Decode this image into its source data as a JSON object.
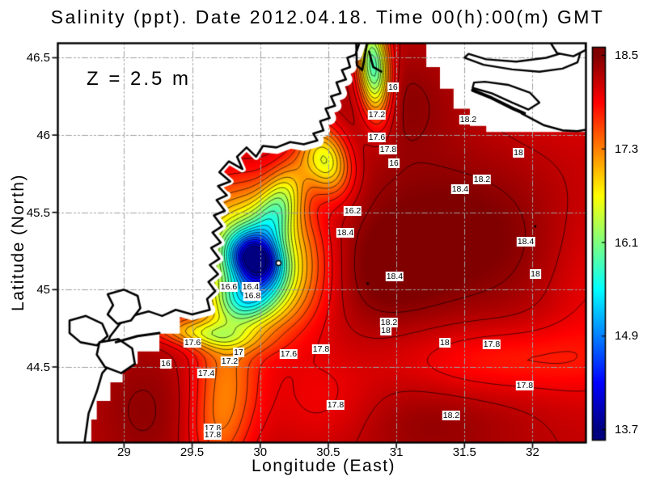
{
  "title": "Salinity (ppt). Date 2012.04.18. Time 00(h):00(m) GMT",
  "annotation": "Z = 2.5 m",
  "axes": {
    "xlabel": "Longitude (East)",
    "ylabel": "Latitude (North)",
    "xticks": [
      "29",
      "29.5",
      "30",
      "30.5",
      "31",
      "31.5",
      "32"
    ],
    "xtick_values": [
      29,
      29.5,
      30,
      30.5,
      31,
      31.5,
      32
    ],
    "yticks": [
      "44.5",
      "45",
      "45.5",
      "46",
      "46.5"
    ],
    "ytick_values": [
      44.5,
      45,
      45.5,
      46,
      46.5
    ],
    "xlim": [
      28.514,
      32.392
    ],
    "ylim": [
      44.011,
      46.594
    ]
  },
  "colorbar": {
    "labels": [
      "18.5",
      "17.3",
      "16.1",
      "14.9",
      "13.7"
    ],
    "values": [
      18.5,
      17.3,
      16.1,
      14.9,
      13.7
    ],
    "min": 13.7,
    "max": 18.5,
    "colormap": "jet"
  },
  "chart_data": {
    "type": "heatmap",
    "variable": "Salinity",
    "units": "ppt",
    "date": "2012.04.18",
    "time": "00(h):00(m) GMT",
    "depth": "Z = 2.5 m",
    "value_range": [
      13.7,
      18.5
    ],
    "contour_interval": 0.2,
    "contour_levels_min": 13.8,
    "contour_levels_max": 18.4,
    "marker": {
      "lon": 30.135,
      "lat": 45.172
    },
    "extremum_dots": [
      [
        30.79,
        45.04
      ],
      [
        32.02,
        45.41
      ]
    ],
    "contour_labels": [
      {
        "t": "16",
        "lon": 30.975,
        "lat": 46.309
      },
      {
        "t": "17.2",
        "lon": 30.857,
        "lat": 46.131
      },
      {
        "t": "17.6",
        "lon": 30.857,
        "lat": 45.985
      },
      {
        "t": "17.8",
        "lon": 30.94,
        "lat": 45.907
      },
      {
        "t": "16",
        "lon": 30.982,
        "lat": 45.818
      },
      {
        "t": "18.2",
        "lon": 31.528,
        "lat": 46.1
      },
      {
        "t": "18",
        "lon": 31.896,
        "lat": 45.886
      },
      {
        "t": "18.2",
        "lon": 31.629,
        "lat": 45.713
      },
      {
        "t": "18.4",
        "lon": 31.468,
        "lat": 45.65
      },
      {
        "t": "16.2",
        "lon": 30.679,
        "lat": 45.509
      },
      {
        "t": "18.4",
        "lon": 30.625,
        "lat": 45.368
      },
      {
        "t": "18.4",
        "lon": 31.95,
        "lat": 45.31
      },
      {
        "t": "18",
        "lon": 32.021,
        "lat": 45.101
      },
      {
        "t": "18.4",
        "lon": 30.987,
        "lat": 45.085
      },
      {
        "t": "16.6",
        "lon": 29.77,
        "lat": 45.018
      },
      {
        "t": "16.4",
        "lon": 29.93,
        "lat": 45.018
      },
      {
        "t": "16.8",
        "lon": 29.942,
        "lat": 44.96
      },
      {
        "t": "18.2",
        "lon": 30.946,
        "lat": 44.787
      },
      {
        "t": "18",
        "lon": 30.922,
        "lat": 44.735
      },
      {
        "t": "17.6",
        "lon": 29.503,
        "lat": 44.657
      },
      {
        "t": "18",
        "lon": 31.355,
        "lat": 44.657
      },
      {
        "t": "17.8",
        "lon": 31.7,
        "lat": 44.646
      },
      {
        "t": "16",
        "lon": 29.307,
        "lat": 44.521
      },
      {
        "t": "17",
        "lon": 29.841,
        "lat": 44.594
      },
      {
        "t": "17.2",
        "lon": 29.776,
        "lat": 44.537
      },
      {
        "t": "17.6",
        "lon": 30.209,
        "lat": 44.584
      },
      {
        "t": "17.8",
        "lon": 30.447,
        "lat": 44.615
      },
      {
        "t": "17.4",
        "lon": 29.604,
        "lat": 44.458
      },
      {
        "t": "17.8",
        "lon": 31.943,
        "lat": 44.38
      },
      {
        "t": "17.8",
        "lon": 30.554,
        "lat": 44.254
      },
      {
        "t": "18.2",
        "lon": 31.403,
        "lat": 44.186
      },
      {
        "t": "17.8",
        "lon": 29.651,
        "lat": 44.103
      },
      {
        "t": "17.8",
        "lon": 29.651,
        "lat": 44.061
      }
    ],
    "field_base": 18.22,
    "field_bumps": [
      [
        29.95,
        45.21,
        0.32,
        0.28,
        -30,
        -2.45
      ],
      [
        29.96,
        45.2,
        0.13,
        0.1,
        -30,
        -2.25
      ],
      [
        30.14,
        45.56,
        0.105,
        0.21,
        -27,
        -1.3
      ],
      [
        30.48,
        45.84,
        0.115,
        0.16,
        25,
        -1.6
      ],
      [
        30.83,
        46.44,
        0.08,
        0.22,
        5,
        -2.45
      ],
      [
        29.9,
        44.93,
        0.17,
        0.12,
        15,
        -1.3
      ],
      [
        29.55,
        44.72,
        0.27,
        0.065,
        -6,
        -1.05
      ],
      [
        29.75,
        44.45,
        0.17,
        0.28,
        8,
        -0.75
      ],
      [
        29.67,
        44.06,
        0.15,
        0.22,
        0,
        -0.55
      ],
      [
        30.45,
        44.28,
        0.28,
        0.22,
        0,
        -0.25
      ],
      [
        31.45,
        45.38,
        0.55,
        0.34,
        -10,
        0.33
      ],
      [
        30.88,
        45.1,
        0.34,
        0.24,
        0,
        0.28
      ],
      [
        32.25,
        46.35,
        0.45,
        0.28,
        0,
        -0.22
      ],
      [
        31.78,
        44.55,
        0.55,
        0.16,
        0,
        -0.42
      ],
      [
        31.25,
        44.12,
        0.4,
        0.18,
        0,
        0.18
      ],
      [
        32.45,
        44.95,
        0.28,
        0.5,
        0,
        -0.26
      ],
      [
        31.05,
        46.22,
        0.28,
        0.22,
        0,
        0.22
      ],
      [
        29.15,
        44.22,
        0.26,
        0.3,
        0,
        0.2
      ]
    ],
    "coastline": [
      [
        30.73,
        46.6
      ],
      [
        30.7,
        46.52
      ],
      [
        30.64,
        46.5
      ],
      [
        30.66,
        46.44
      ],
      [
        30.6,
        46.42
      ],
      [
        30.63,
        46.36
      ],
      [
        30.56,
        46.34
      ],
      [
        30.59,
        46.27
      ],
      [
        30.52,
        46.25
      ],
      [
        30.55,
        46.19
      ],
      [
        30.48,
        46.17
      ],
      [
        30.51,
        46.11
      ],
      [
        30.44,
        46.09
      ],
      [
        30.465,
        46.03
      ],
      [
        30.39,
        46.01
      ],
      [
        30.42,
        45.965
      ],
      [
        30.32,
        45.94
      ],
      [
        30.22,
        45.955
      ],
      [
        30.12,
        45.92
      ],
      [
        30.02,
        45.93
      ],
      [
        29.97,
        45.86
      ],
      [
        29.9,
        45.92
      ],
      [
        29.83,
        45.86
      ],
      [
        29.87,
        45.78
      ],
      [
        29.77,
        45.83
      ],
      [
        29.7,
        45.76
      ],
      [
        29.78,
        45.7
      ],
      [
        29.69,
        45.67
      ],
      [
        29.755,
        45.61
      ],
      [
        29.68,
        45.58
      ],
      [
        29.74,
        45.51
      ],
      [
        29.66,
        45.48
      ],
      [
        29.72,
        45.41
      ],
      [
        29.65,
        45.37
      ],
      [
        29.71,
        45.305
      ],
      [
        29.64,
        45.27
      ],
      [
        29.7,
        45.2
      ],
      [
        29.63,
        45.16
      ],
      [
        29.69,
        45.1
      ],
      [
        29.62,
        45.05
      ],
      [
        29.67,
        44.99
      ],
      [
        29.61,
        44.94
      ],
      [
        29.63,
        44.87
      ],
      [
        29.5,
        44.84
      ],
      [
        29.38,
        44.87
      ],
      [
        29.28,
        44.83
      ],
      [
        29.18,
        44.86
      ],
      [
        29.06,
        44.83
      ],
      [
        28.97,
        44.78
      ],
      [
        28.9,
        44.7
      ],
      [
        28.86,
        44.62
      ],
      [
        28.92,
        44.54
      ],
      [
        28.84,
        44.46
      ],
      [
        28.8,
        44.34
      ],
      [
        28.74,
        44.2
      ],
      [
        28.71,
        44.01
      ]
    ],
    "coast_close": [
      [
        28.45,
        44.01
      ],
      [
        28.45,
        46.6
      ]
    ],
    "nodata_sw": [
      [
        29.47,
        44.88
      ],
      [
        29.41,
        44.85
      ],
      [
        29.41,
        44.715
      ],
      [
        29.26,
        44.715
      ],
      [
        29.26,
        44.6
      ],
      [
        29.1,
        44.6
      ],
      [
        29.1,
        44.52
      ],
      [
        28.99,
        44.52
      ],
      [
        28.99,
        44.4
      ],
      [
        28.9,
        44.4
      ],
      [
        28.9,
        44.28
      ],
      [
        28.8,
        44.28
      ],
      [
        28.8,
        44.16
      ],
      [
        28.76,
        44.16
      ],
      [
        28.76,
        44.01
      ],
      [
        28.45,
        44.01
      ],
      [
        28.45,
        44.86
      ],
      [
        29.0,
        44.9
      ]
    ],
    "nodata_ne": [
      [
        31.22,
        46.6
      ],
      [
        31.22,
        46.44
      ],
      [
        31.32,
        46.44
      ],
      [
        31.32,
        46.3
      ],
      [
        31.42,
        46.3
      ],
      [
        31.42,
        46.17
      ],
      [
        31.54,
        46.17
      ],
      [
        31.54,
        46.06
      ],
      [
        31.66,
        46.06
      ],
      [
        31.66,
        46.02
      ],
      [
        32.392,
        46.02
      ],
      [
        32.392,
        46.6
      ]
    ],
    "lakes": [
      [
        [
          28.88,
          44.97
        ],
        [
          29.0,
          45.0
        ],
        [
          29.1,
          44.96
        ],
        [
          29.12,
          44.88
        ],
        [
          29.05,
          44.8
        ],
        [
          28.95,
          44.78
        ],
        [
          28.88,
          44.84
        ],
        [
          28.92,
          44.9
        ]
      ],
      [
        [
          28.6,
          44.8
        ],
        [
          28.72,
          44.83
        ],
        [
          28.84,
          44.78
        ],
        [
          28.88,
          44.7
        ],
        [
          28.8,
          44.64
        ],
        [
          28.68,
          44.66
        ],
        [
          28.6,
          44.72
        ]
      ],
      [
        [
          28.82,
          44.66
        ],
        [
          28.96,
          44.68
        ],
        [
          29.06,
          44.62
        ],
        [
          29.08,
          44.52
        ],
        [
          28.98,
          44.46
        ],
        [
          28.86,
          44.5
        ],
        [
          28.8,
          44.58
        ]
      ]
    ],
    "lake_lines": [
      [
        [
          28.94,
          44.66
        ],
        [
          29.1,
          44.7
        ],
        [
          29.26,
          44.72
        ]
      ]
    ],
    "islands": [
      [
        [
          31.5,
          46.5
        ],
        [
          31.64,
          46.455
        ],
        [
          31.85,
          46.425
        ],
        [
          32.05,
          46.41
        ],
        [
          32.22,
          46.43
        ],
        [
          32.33,
          46.47
        ],
        [
          32.35,
          46.53
        ],
        [
          32.27,
          46.545
        ],
        [
          32.1,
          46.5
        ],
        [
          31.88,
          46.475
        ],
        [
          31.66,
          46.49
        ],
        [
          31.53,
          46.525
        ]
      ],
      [
        [
          32.13,
          46.6
        ],
        [
          32.18,
          46.53
        ],
        [
          32.3,
          46.51
        ],
        [
          32.39,
          46.55
        ],
        [
          32.39,
          46.6
        ]
      ],
      [
        [
          31.56,
          46.305
        ],
        [
          31.7,
          46.27
        ],
        [
          31.85,
          46.21
        ],
        [
          31.97,
          46.165
        ],
        [
          32.05,
          46.21
        ],
        [
          31.98,
          46.275
        ],
        [
          31.82,
          46.325
        ],
        [
          31.65,
          46.345
        ],
        [
          31.57,
          46.34
        ]
      ]
    ],
    "island_lines": [
      [
        [
          31.56,
          46.29
        ],
        [
          31.7,
          46.24
        ],
        [
          31.86,
          46.17
        ],
        [
          31.94,
          46.14
        ]
      ],
      [
        [
          31.92,
          46.14
        ],
        [
          32.08,
          46.065
        ],
        [
          32.22,
          46.03
        ],
        [
          32.33,
          46.025
        ],
        [
          32.392,
          46.035
        ]
      ],
      [
        [
          30.705,
          46.6
        ],
        [
          30.71,
          46.45
        ],
        [
          30.75,
          46.42
        ],
        [
          30.77,
          46.52
        ],
        [
          30.785,
          46.6
        ]
      ],
      [
        [
          30.8,
          46.54
        ],
        [
          30.83,
          46.44
        ],
        [
          30.89,
          46.41
        ]
      ]
    ]
  }
}
